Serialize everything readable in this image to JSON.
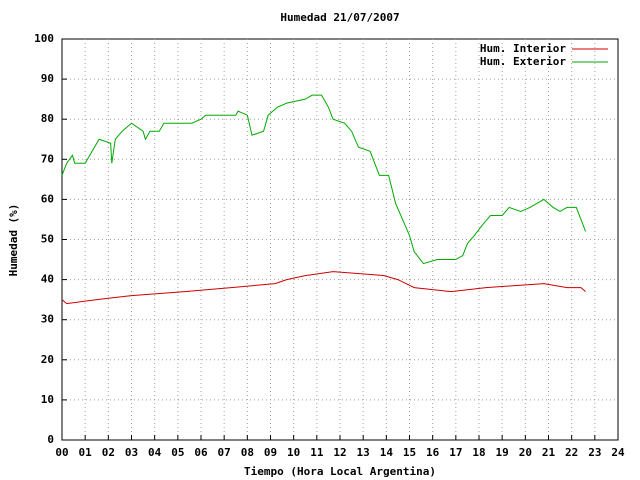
{
  "chart_data": {
    "type": "line",
    "title": "Humedad 21/07/2007",
    "xlabel": "Tiempo (Hora Local Argentina)",
    "ylabel": "Humedad (%)",
    "xlim": [
      0,
      24
    ],
    "ylim": [
      0,
      100
    ],
    "xticks": [
      {
        "value": 0,
        "label": "00"
      },
      {
        "value": 1,
        "label": "01"
      },
      {
        "value": 2,
        "label": "02"
      },
      {
        "value": 3,
        "label": "03"
      },
      {
        "value": 4,
        "label": "04"
      },
      {
        "value": 5,
        "label": "05"
      },
      {
        "value": 6,
        "label": "06"
      },
      {
        "value": 7,
        "label": "07"
      },
      {
        "value": 8,
        "label": "08"
      },
      {
        "value": 9,
        "label": "09"
      },
      10,
      11,
      12,
      13,
      14,
      15,
      16,
      17,
      18,
      19,
      20,
      21,
      22,
      23,
      24
    ],
    "yticks": [
      0,
      10,
      20,
      30,
      40,
      50,
      60,
      70,
      80,
      90,
      100
    ],
    "grid": true,
    "legend": "top-right",
    "series": [
      {
        "name": "Hum. Interior",
        "color": "#cc0000",
        "x": [
          0,
          0.2,
          1.5,
          3.0,
          5.3,
          7.3,
          9.2,
          9.7,
          10.5,
          11.7,
          13.9,
          14.5,
          15.2,
          16.8,
          18.3,
          20.8,
          21.8,
          22.4,
          22.6
        ],
        "values": [
          35,
          34,
          35,
          36,
          37,
          38,
          39,
          40,
          41,
          42,
          41,
          40,
          38,
          37,
          38,
          39,
          38,
          38,
          37
        ]
      },
      {
        "name": "Hum. Exterior",
        "color": "#00aa00",
        "x": [
          0,
          0.2,
          0.45,
          0.55,
          1.0,
          1.2,
          1.4,
          1.6,
          2.1,
          2.15,
          2.3,
          2.6,
          3.0,
          3.5,
          3.6,
          3.8,
          4.2,
          4.4,
          5.6,
          6.0,
          6.2,
          7.5,
          7.6,
          8.0,
          8.2,
          8.7,
          8.9,
          9.3,
          9.7,
          10.5,
          10.8,
          11.2,
          11.5,
          11.7,
          12.2,
          12.5,
          12.8,
          13.3,
          13.5,
          13.7,
          14.1,
          14.4,
          14.7,
          15.0,
          15.2,
          15.6,
          16.2,
          17.0,
          17.3,
          17.5,
          17.8,
          18.2,
          18.5,
          19.0,
          19.3,
          19.8,
          20.2,
          20.5,
          20.8,
          21.2,
          21.5,
          21.8,
          22.2,
          22.4,
          22.6
        ],
        "values": [
          66,
          69,
          71,
          69,
          69,
          71,
          73,
          75,
          74,
          69,
          75,
          77,
          79,
          77,
          75,
          77,
          77,
          79,
          79,
          80,
          81,
          81,
          82,
          81,
          76,
          77,
          81,
          83,
          84,
          85,
          86,
          86,
          83,
          80,
          79,
          77,
          73,
          72,
          69,
          66,
          66,
          59,
          55,
          51,
          47,
          44,
          45,
          45,
          46,
          49,
          51,
          54,
          56,
          56,
          58,
          57,
          58,
          59,
          60,
          58,
          57,
          58,
          58,
          55,
          52
        ]
      }
    ]
  }
}
